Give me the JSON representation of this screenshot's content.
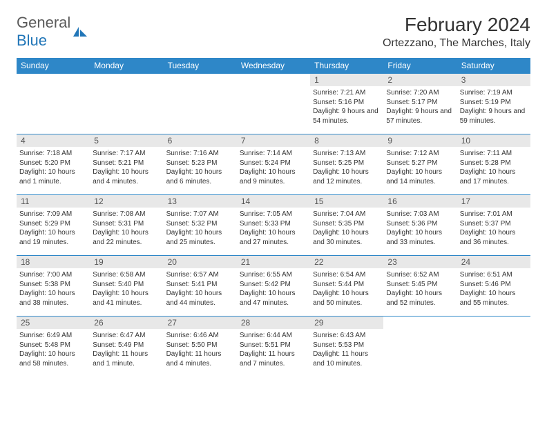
{
  "logo": {
    "text_general": "General",
    "text_blue": "Blue",
    "icon_color": "#2176b8"
  },
  "header": {
    "month_title": "February 2024",
    "location": "Ortezzano, The Marches, Italy"
  },
  "colors": {
    "header_bg": "#2e87c8",
    "header_text": "#ffffff",
    "daynum_bg": "#e8e8e8",
    "daynum_text": "#555555",
    "body_text": "#333333",
    "border": "#2e87c8"
  },
  "days_of_week": [
    "Sunday",
    "Monday",
    "Tuesday",
    "Wednesday",
    "Thursday",
    "Friday",
    "Saturday"
  ],
  "weeks": [
    [
      null,
      null,
      null,
      null,
      {
        "n": "1",
        "sr": "Sunrise: 7:21 AM",
        "ss": "Sunset: 5:16 PM",
        "dl": "Daylight: 9 hours and 54 minutes."
      },
      {
        "n": "2",
        "sr": "Sunrise: 7:20 AM",
        "ss": "Sunset: 5:17 PM",
        "dl": "Daylight: 9 hours and 57 minutes."
      },
      {
        "n": "3",
        "sr": "Sunrise: 7:19 AM",
        "ss": "Sunset: 5:19 PM",
        "dl": "Daylight: 9 hours and 59 minutes."
      }
    ],
    [
      {
        "n": "4",
        "sr": "Sunrise: 7:18 AM",
        "ss": "Sunset: 5:20 PM",
        "dl": "Daylight: 10 hours and 1 minute."
      },
      {
        "n": "5",
        "sr": "Sunrise: 7:17 AM",
        "ss": "Sunset: 5:21 PM",
        "dl": "Daylight: 10 hours and 4 minutes."
      },
      {
        "n": "6",
        "sr": "Sunrise: 7:16 AM",
        "ss": "Sunset: 5:23 PM",
        "dl": "Daylight: 10 hours and 6 minutes."
      },
      {
        "n": "7",
        "sr": "Sunrise: 7:14 AM",
        "ss": "Sunset: 5:24 PM",
        "dl": "Daylight: 10 hours and 9 minutes."
      },
      {
        "n": "8",
        "sr": "Sunrise: 7:13 AM",
        "ss": "Sunset: 5:25 PM",
        "dl": "Daylight: 10 hours and 12 minutes."
      },
      {
        "n": "9",
        "sr": "Sunrise: 7:12 AM",
        "ss": "Sunset: 5:27 PM",
        "dl": "Daylight: 10 hours and 14 minutes."
      },
      {
        "n": "10",
        "sr": "Sunrise: 7:11 AM",
        "ss": "Sunset: 5:28 PM",
        "dl": "Daylight: 10 hours and 17 minutes."
      }
    ],
    [
      {
        "n": "11",
        "sr": "Sunrise: 7:09 AM",
        "ss": "Sunset: 5:29 PM",
        "dl": "Daylight: 10 hours and 19 minutes."
      },
      {
        "n": "12",
        "sr": "Sunrise: 7:08 AM",
        "ss": "Sunset: 5:31 PM",
        "dl": "Daylight: 10 hours and 22 minutes."
      },
      {
        "n": "13",
        "sr": "Sunrise: 7:07 AM",
        "ss": "Sunset: 5:32 PM",
        "dl": "Daylight: 10 hours and 25 minutes."
      },
      {
        "n": "14",
        "sr": "Sunrise: 7:05 AM",
        "ss": "Sunset: 5:33 PM",
        "dl": "Daylight: 10 hours and 27 minutes."
      },
      {
        "n": "15",
        "sr": "Sunrise: 7:04 AM",
        "ss": "Sunset: 5:35 PM",
        "dl": "Daylight: 10 hours and 30 minutes."
      },
      {
        "n": "16",
        "sr": "Sunrise: 7:03 AM",
        "ss": "Sunset: 5:36 PM",
        "dl": "Daylight: 10 hours and 33 minutes."
      },
      {
        "n": "17",
        "sr": "Sunrise: 7:01 AM",
        "ss": "Sunset: 5:37 PM",
        "dl": "Daylight: 10 hours and 36 minutes."
      }
    ],
    [
      {
        "n": "18",
        "sr": "Sunrise: 7:00 AM",
        "ss": "Sunset: 5:38 PM",
        "dl": "Daylight: 10 hours and 38 minutes."
      },
      {
        "n": "19",
        "sr": "Sunrise: 6:58 AM",
        "ss": "Sunset: 5:40 PM",
        "dl": "Daylight: 10 hours and 41 minutes."
      },
      {
        "n": "20",
        "sr": "Sunrise: 6:57 AM",
        "ss": "Sunset: 5:41 PM",
        "dl": "Daylight: 10 hours and 44 minutes."
      },
      {
        "n": "21",
        "sr": "Sunrise: 6:55 AM",
        "ss": "Sunset: 5:42 PM",
        "dl": "Daylight: 10 hours and 47 minutes."
      },
      {
        "n": "22",
        "sr": "Sunrise: 6:54 AM",
        "ss": "Sunset: 5:44 PM",
        "dl": "Daylight: 10 hours and 50 minutes."
      },
      {
        "n": "23",
        "sr": "Sunrise: 6:52 AM",
        "ss": "Sunset: 5:45 PM",
        "dl": "Daylight: 10 hours and 52 minutes."
      },
      {
        "n": "24",
        "sr": "Sunrise: 6:51 AM",
        "ss": "Sunset: 5:46 PM",
        "dl": "Daylight: 10 hours and 55 minutes."
      }
    ],
    [
      {
        "n": "25",
        "sr": "Sunrise: 6:49 AM",
        "ss": "Sunset: 5:48 PM",
        "dl": "Daylight: 10 hours and 58 minutes."
      },
      {
        "n": "26",
        "sr": "Sunrise: 6:47 AM",
        "ss": "Sunset: 5:49 PM",
        "dl": "Daylight: 11 hours and 1 minute."
      },
      {
        "n": "27",
        "sr": "Sunrise: 6:46 AM",
        "ss": "Sunset: 5:50 PM",
        "dl": "Daylight: 11 hours and 4 minutes."
      },
      {
        "n": "28",
        "sr": "Sunrise: 6:44 AM",
        "ss": "Sunset: 5:51 PM",
        "dl": "Daylight: 11 hours and 7 minutes."
      },
      {
        "n": "29",
        "sr": "Sunrise: 6:43 AM",
        "ss": "Sunset: 5:53 PM",
        "dl": "Daylight: 11 hours and 10 minutes."
      },
      null,
      null
    ]
  ]
}
